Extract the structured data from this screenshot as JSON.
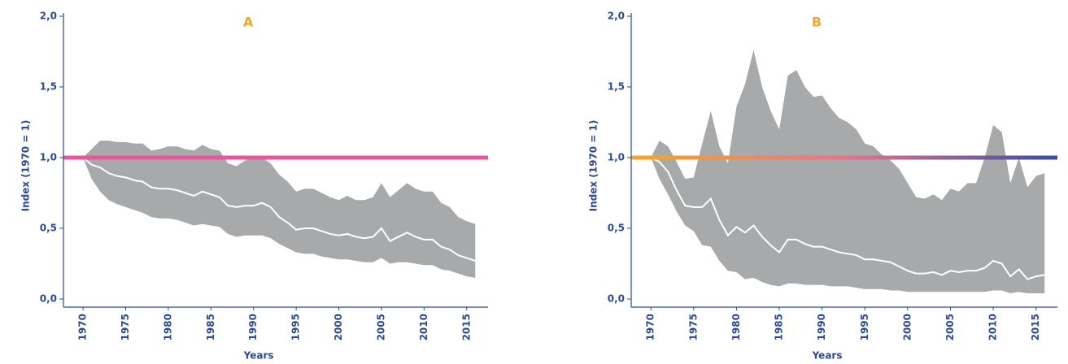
{
  "chart_data": [
    {
      "type": "band_line",
      "title": "A",
      "y_label": "Index (1970 = 1)",
      "x_label": "Years",
      "x": [
        1970,
        1971,
        1972,
        1973,
        1974,
        1975,
        1976,
        1977,
        1978,
        1979,
        1980,
        1981,
        1982,
        1983,
        1984,
        1985,
        1986,
        1987,
        1988,
        1989,
        1990,
        1991,
        1992,
        1993,
        1994,
        1995,
        1996,
        1997,
        1998,
        1999,
        2000,
        2001,
        2002,
        2003,
        2004,
        2005,
        2006,
        2007,
        2008,
        2009,
        2010,
        2011,
        2012,
        2013,
        2014,
        2015,
        2016
      ],
      "values": [
        1.0,
        0.95,
        0.93,
        0.89,
        0.87,
        0.86,
        0.84,
        0.83,
        0.79,
        0.78,
        0.78,
        0.77,
        0.75,
        0.73,
        0.76,
        0.74,
        0.72,
        0.66,
        0.65,
        0.66,
        0.66,
        0.68,
        0.65,
        0.58,
        0.54,
        0.49,
        0.5,
        0.5,
        0.48,
        0.46,
        0.45,
        0.46,
        0.44,
        0.43,
        0.44,
        0.5,
        0.41,
        0.44,
        0.47,
        0.44,
        0.42,
        0.42,
        0.37,
        0.35,
        0.31,
        0.29,
        0.27
      ],
      "upper": [
        1.0,
        1.06,
        1.12,
        1.12,
        1.11,
        1.11,
        1.1,
        1.1,
        1.05,
        1.06,
        1.08,
        1.08,
        1.06,
        1.05,
        1.09,
        1.06,
        1.05,
        0.96,
        0.94,
        0.98,
        1.0,
        1.0,
        0.96,
        0.88,
        0.83,
        0.76,
        0.78,
        0.78,
        0.75,
        0.72,
        0.7,
        0.73,
        0.7,
        0.7,
        0.72,
        0.82,
        0.72,
        0.77,
        0.82,
        0.78,
        0.76,
        0.76,
        0.68,
        0.65,
        0.58,
        0.55,
        0.53
      ],
      "lower": [
        1.0,
        0.85,
        0.76,
        0.7,
        0.67,
        0.65,
        0.63,
        0.61,
        0.58,
        0.57,
        0.57,
        0.56,
        0.54,
        0.52,
        0.53,
        0.52,
        0.51,
        0.46,
        0.44,
        0.45,
        0.45,
        0.45,
        0.43,
        0.39,
        0.36,
        0.33,
        0.32,
        0.32,
        0.3,
        0.29,
        0.28,
        0.28,
        0.27,
        0.26,
        0.26,
        0.29,
        0.25,
        0.26,
        0.26,
        0.25,
        0.24,
        0.24,
        0.21,
        0.2,
        0.18,
        0.16,
        0.15
      ],
      "line_color": "#ffffff",
      "band_color": "#a7a9ab",
      "reference_line": 1.0,
      "reference_colors": [
        "#e8579a"
      ],
      "xlim": [
        1967.7,
        2017.5
      ],
      "ylim": [
        0,
        2
      ],
      "xticks": [
        1970,
        1975,
        1980,
        1985,
        1990,
        1995,
        2000,
        2005,
        2010,
        2015
      ],
      "yticks": [
        {
          "value": 0,
          "label": "0,0"
        },
        {
          "value": 0.5,
          "label": "0,5"
        },
        {
          "value": 1.0,
          "label": "1,0"
        },
        {
          "value": 1.5,
          "label": "1,5"
        },
        {
          "value": 2.0,
          "label": "2,0"
        }
      ]
    },
    {
      "type": "band_line",
      "title": "B",
      "y_label": "Index (1970 = 1)",
      "x_label": "Years",
      "x": [
        1970,
        1971,
        1972,
        1973,
        1974,
        1975,
        1976,
        1977,
        1978,
        1979,
        1980,
        1981,
        1982,
        1983,
        1984,
        1985,
        1986,
        1987,
        1988,
        1989,
        1990,
        1991,
        1992,
        1993,
        1994,
        1995,
        1996,
        1997,
        1998,
        1999,
        2000,
        2001,
        2002,
        2003,
        2004,
        2005,
        2006,
        2007,
        2008,
        2009,
        2010,
        2011,
        2012,
        2013,
        2014,
        2015,
        2016
      ],
      "values": [
        1.0,
        0.97,
        0.9,
        0.77,
        0.66,
        0.65,
        0.65,
        0.71,
        0.56,
        0.45,
        0.51,
        0.47,
        0.52,
        0.44,
        0.38,
        0.33,
        0.42,
        0.42,
        0.39,
        0.37,
        0.37,
        0.35,
        0.33,
        0.32,
        0.31,
        0.28,
        0.28,
        0.27,
        0.26,
        0.23,
        0.2,
        0.18,
        0.18,
        0.19,
        0.17,
        0.2,
        0.19,
        0.2,
        0.2,
        0.22,
        0.27,
        0.25,
        0.16,
        0.21,
        0.14,
        0.16,
        0.17
      ],
      "upper": [
        1.0,
        1.12,
        1.08,
        0.97,
        0.85,
        0.86,
        1.1,
        1.33,
        1.08,
        0.96,
        1.36,
        1.52,
        1.76,
        1.5,
        1.33,
        1.2,
        1.58,
        1.62,
        1.5,
        1.43,
        1.44,
        1.35,
        1.28,
        1.25,
        1.2,
        1.1,
        1.08,
        1.02,
        0.98,
        0.92,
        0.82,
        0.72,
        0.71,
        0.74,
        0.7,
        0.78,
        0.76,
        0.82,
        0.82,
        1.0,
        1.23,
        1.18,
        0.82,
        1.0,
        0.79,
        0.87,
        0.89
      ],
      "lower": [
        1.0,
        0.85,
        0.74,
        0.62,
        0.52,
        0.48,
        0.38,
        0.37,
        0.27,
        0.2,
        0.19,
        0.14,
        0.15,
        0.12,
        0.1,
        0.09,
        0.11,
        0.11,
        0.1,
        0.1,
        0.1,
        0.09,
        0.09,
        0.09,
        0.08,
        0.07,
        0.07,
        0.07,
        0.06,
        0.06,
        0.05,
        0.05,
        0.05,
        0.05,
        0.05,
        0.05,
        0.05,
        0.05,
        0.05,
        0.05,
        0.06,
        0.06,
        0.04,
        0.05,
        0.04,
        0.04,
        0.04
      ],
      "line_color": "#ffffff",
      "band_color": "#a7a9ab",
      "reference_line": 1.0,
      "reference_colors": [
        "#f5a623",
        "#e8758a",
        "#3a4ea0"
      ],
      "xlim": [
        1967.7,
        2017.5
      ],
      "ylim": [
        0,
        2
      ],
      "xticks": [
        1970,
        1975,
        1980,
        1985,
        1990,
        1995,
        2000,
        2005,
        2010,
        2015
      ],
      "yticks": [
        {
          "value": 0,
          "label": "0,0"
        },
        {
          "value": 0.5,
          "label": "0,5"
        },
        {
          "value": 1.0,
          "label": "1,0"
        },
        {
          "value": 1.5,
          "label": "1,5"
        },
        {
          "value": 2.0,
          "label": "2,0"
        }
      ]
    }
  ]
}
